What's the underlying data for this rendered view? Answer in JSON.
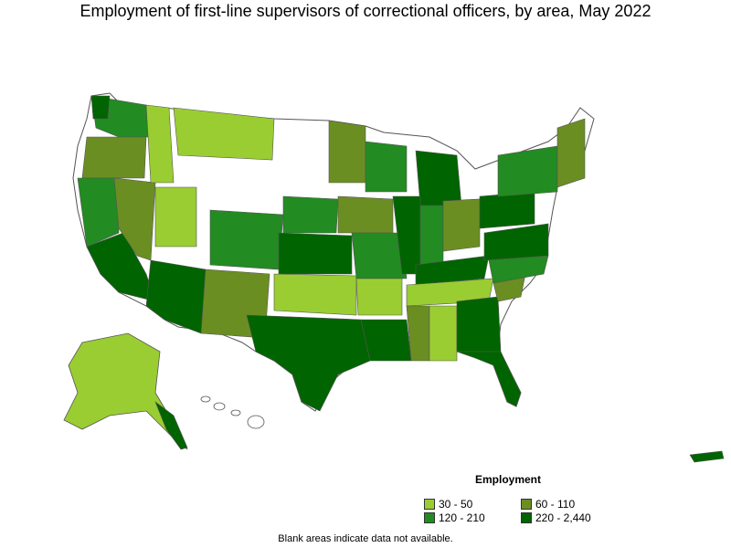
{
  "title": "Employment of first-line supervisors of correctional officers, by area, May 2022",
  "legend": {
    "title": "Employment",
    "items": [
      {
        "label": "30 - 50",
        "color": "#9acd32"
      },
      {
        "label": "60 - 110",
        "color": "#6b8e23"
      },
      {
        "label": "120 - 210",
        "color": "#228b22"
      },
      {
        "label": "220 - 2,440",
        "color": "#006400"
      }
    ]
  },
  "note": "Blank areas indicate data not available.",
  "colors": {
    "no_data": "#ffffff",
    "border": "#555555"
  }
}
